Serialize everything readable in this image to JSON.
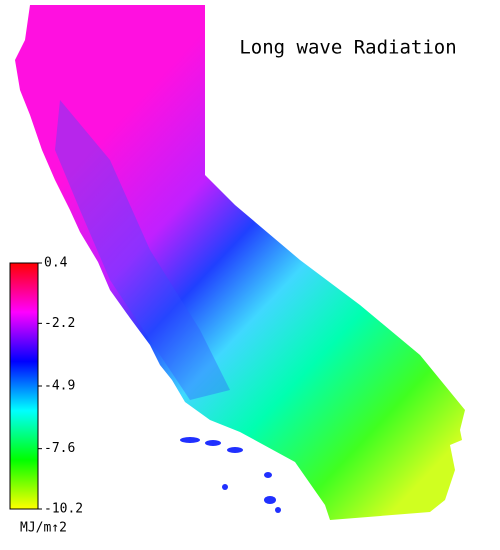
{
  "title": "Long wave Radiation",
  "colorbar": {
    "ticks": [
      0.4,
      -2.2,
      -4.9,
      -7.6,
      -10.2
    ],
    "lim": [
      -10.2,
      0.4
    ],
    "unit": "MJ/m↑2",
    "colors": [
      "#ffff00",
      "#00ff00",
      "#00ffff",
      "#0000ff",
      "#ff00ff",
      "#ff0000"
    ]
  }
}
